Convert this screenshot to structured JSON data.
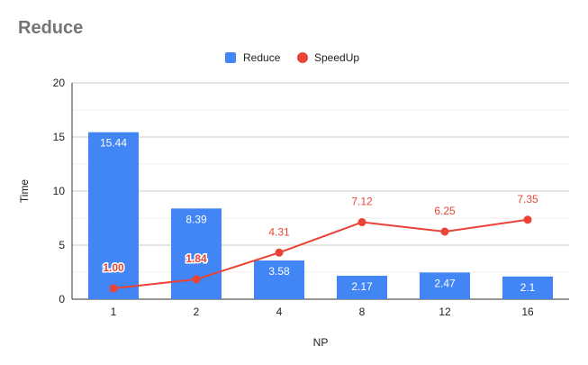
{
  "chart_data": {
    "type": "bar",
    "title": "Reduce",
    "xlabel": "NP",
    "ylabel": "Time",
    "ylim": [
      0,
      20
    ],
    "yticks": [
      0,
      5,
      10,
      15,
      20
    ],
    "categories": [
      "1",
      "2",
      "4",
      "8",
      "12",
      "16"
    ],
    "series": [
      {
        "name": "Reduce",
        "type": "bar",
        "color": "#4285f4",
        "values": [
          15.44,
          8.39,
          3.58,
          2.17,
          2.47,
          2.1
        ],
        "labels": [
          "15.44",
          "8.39",
          "3.58",
          "2.17",
          "2.47",
          "2.1"
        ]
      },
      {
        "name": "SpeedUp",
        "type": "line",
        "color": "#ea4335",
        "values": [
          1.0,
          1.84,
          4.31,
          7.12,
          6.25,
          7.35
        ],
        "labels": [
          "1.00",
          "1.84",
          "4.31",
          "7.12",
          "6.25",
          "7.35"
        ]
      }
    ],
    "legend_position": "top",
    "grid": true
  }
}
